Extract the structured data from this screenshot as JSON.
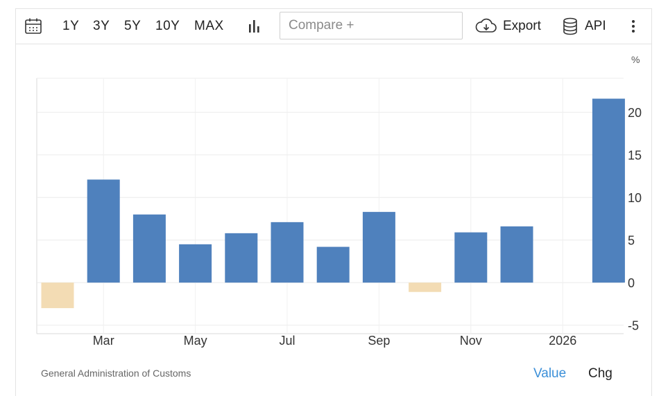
{
  "toolbar": {
    "ranges": [
      "1Y",
      "3Y",
      "5Y",
      "10Y",
      "MAX"
    ],
    "compare_placeholder": "Compare +",
    "export_label": "Export",
    "api_label": "API",
    "icons": [
      "calendar-icon",
      "bar-chart-icon",
      "cloud-download-icon",
      "database-icon",
      "more-vertical-icon"
    ]
  },
  "footer": {
    "source": "General Administration of Customs",
    "value_label": "Value",
    "chg_label": "Chg",
    "active_color": "#3b8fd8"
  },
  "chart_data": {
    "type": "bar",
    "unit": "%",
    "categories": [
      "2025-02",
      "2025-03",
      "2025-04",
      "2025-05",
      "2025-06",
      "2025-07",
      "2025-08",
      "2025-09",
      "2025-10",
      "2025-11",
      "2025-12",
      "2026-01",
      "2026-02"
    ],
    "values": [
      -3.0,
      12.1,
      8.0,
      4.5,
      5.8,
      7.1,
      4.2,
      8.3,
      -1.1,
      5.9,
      6.6,
      null,
      21.6
    ],
    "x_tick_labels": [
      "Mar",
      "May",
      "Jul",
      "Sep",
      "Nov",
      "2026"
    ],
    "y_ticks": [
      -5,
      0,
      5,
      10,
      15,
      20
    ],
    "ylim": [
      -6,
      24
    ],
    "positive_color": "#4f81bd",
    "negative_color": "#f3dcb4",
    "grid": true,
    "y_axis_side": "right"
  }
}
